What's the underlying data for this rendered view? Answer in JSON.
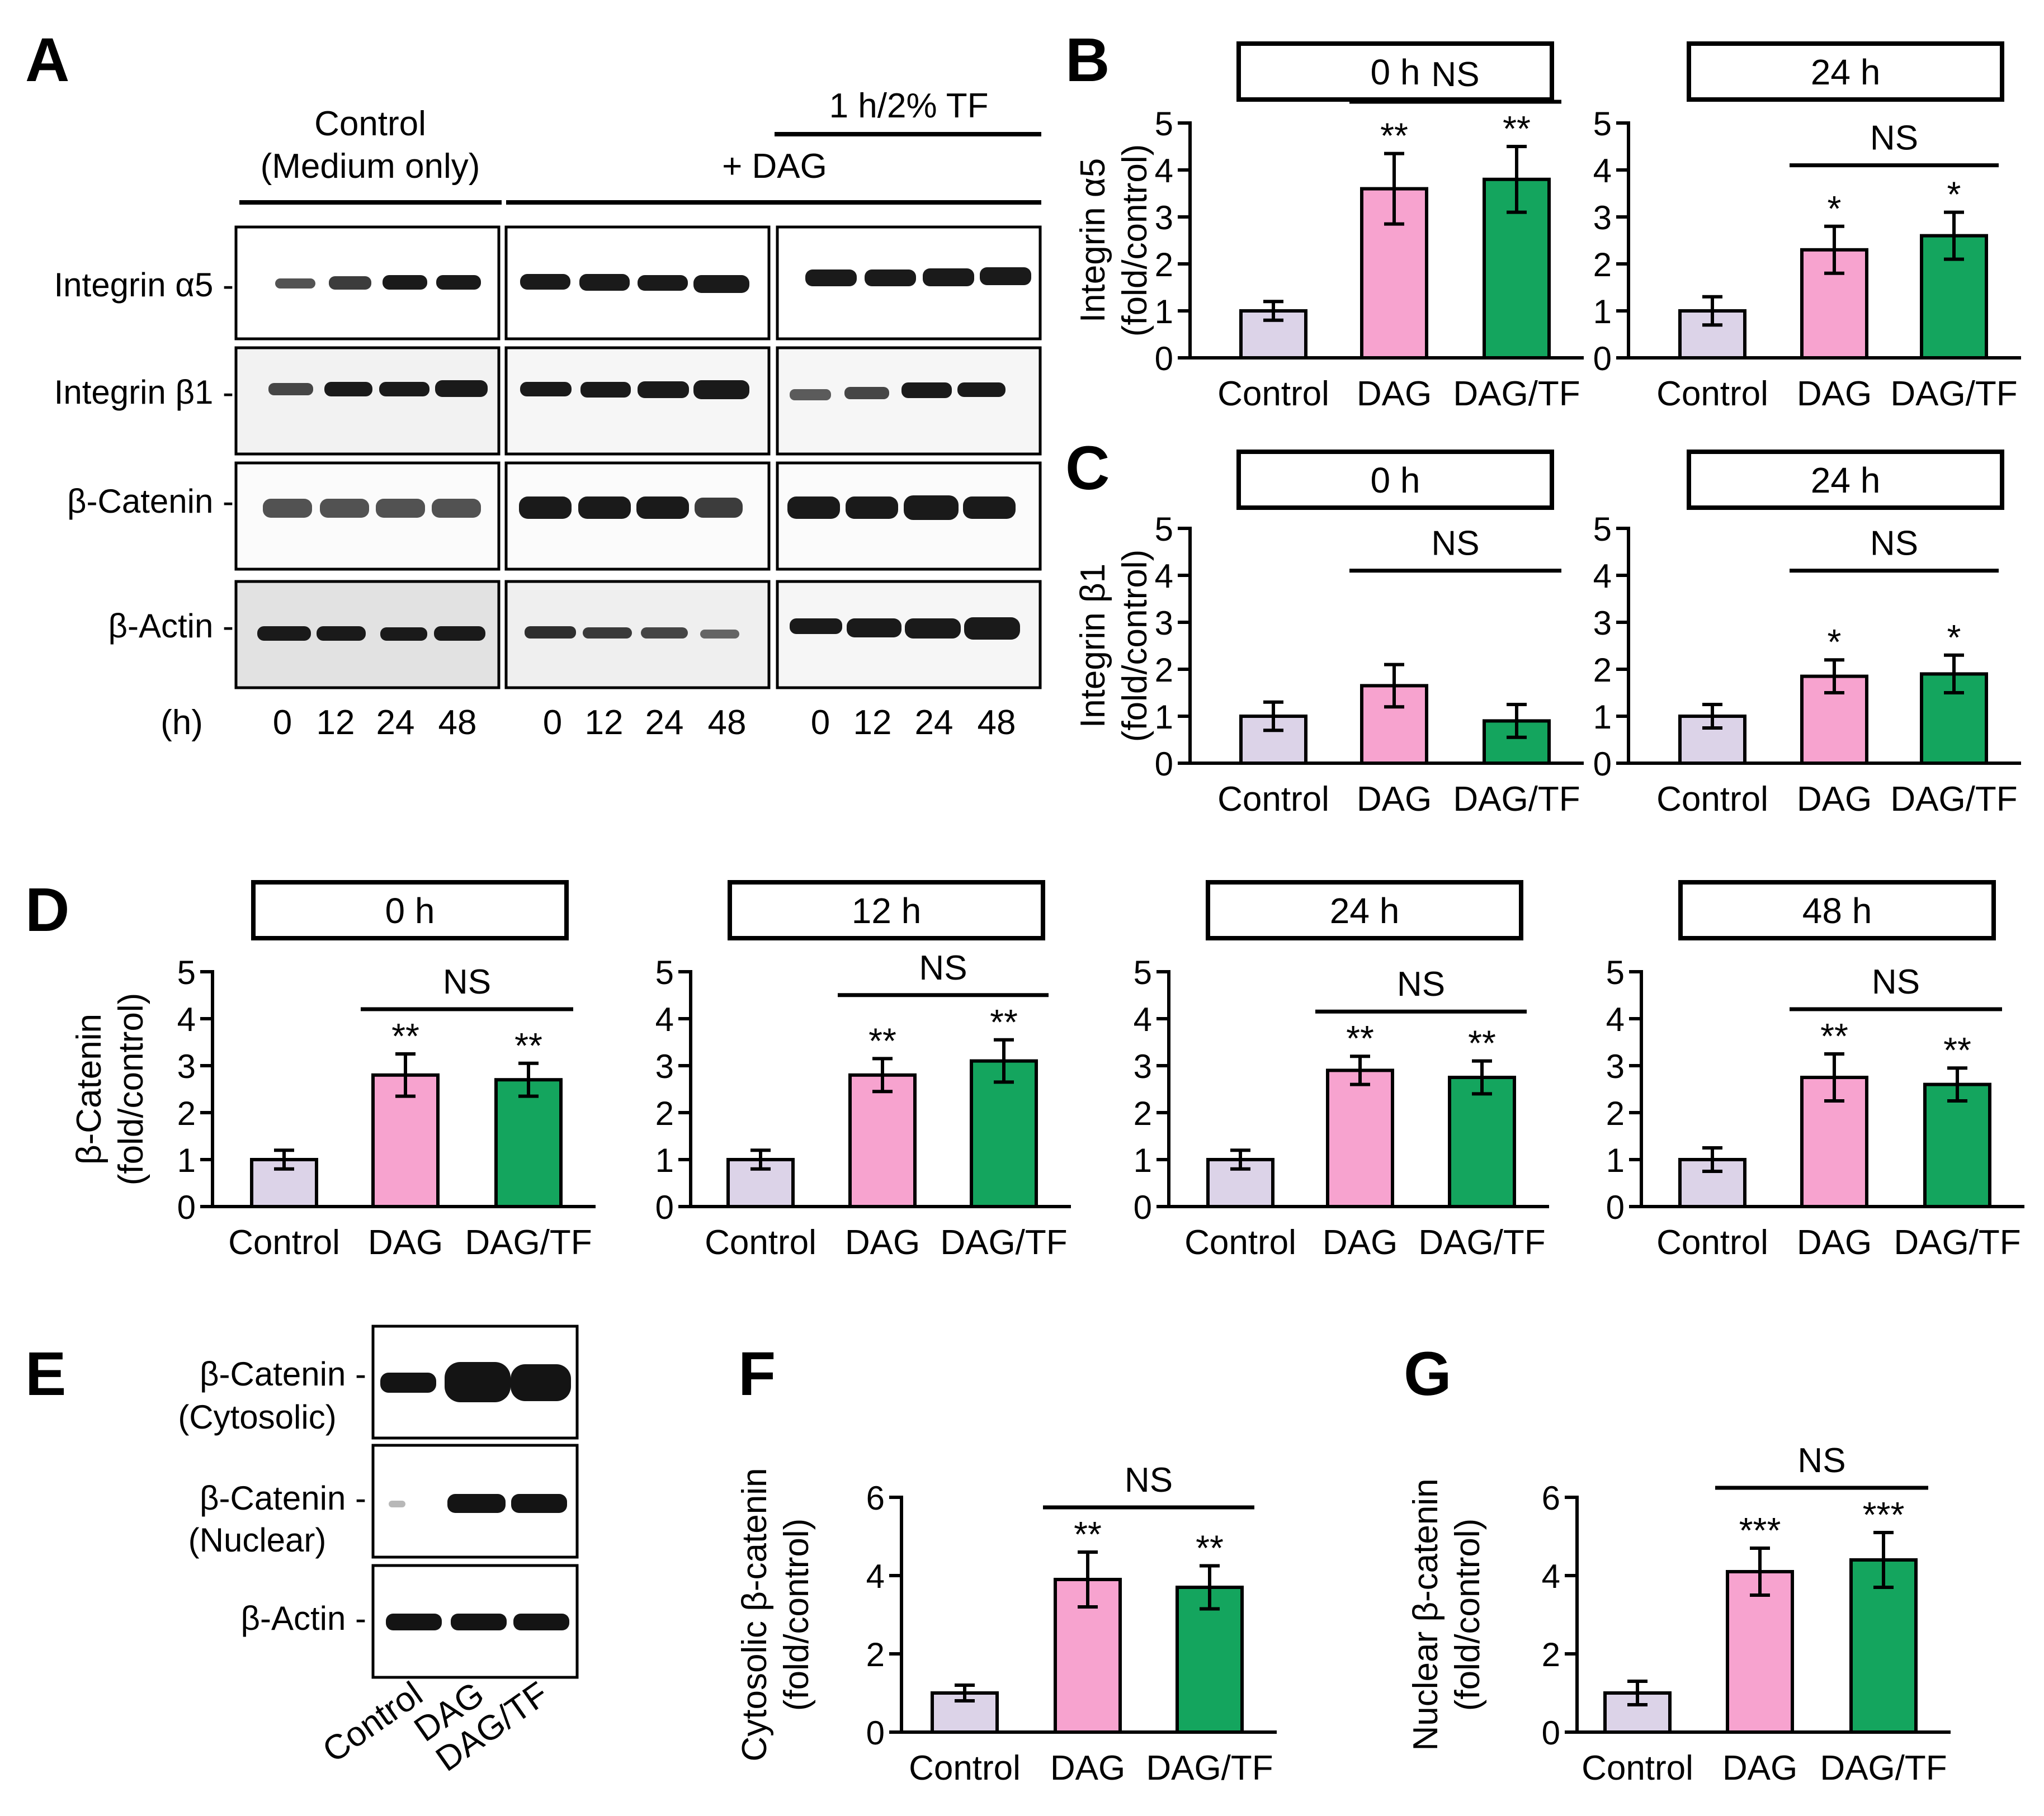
{
  "colors": {
    "control": "#DCD3E8",
    "dag": "#F7A3CF",
    "dagtf": "#14A55E",
    "stroke": "#000000"
  },
  "panel_a": {
    "letter": "A",
    "control_label_line1": "Control",
    "control_label_line2": "(Medium only)",
    "dag_label": "+ DAG",
    "tf_label": "1 h/2% TF",
    "row_labels": [
      "Integrin α5 -",
      "Integrin β1 -",
      "β-Catenin -",
      "β-Actin -"
    ],
    "time_unit": "(h)",
    "times": [
      "0",
      "12",
      "24",
      "48"
    ]
  },
  "panel_e": {
    "letter": "E",
    "rows": [
      {
        "line1": "β-Catenin -",
        "line2": "(Cytosolic)"
      },
      {
        "line1": "β-Catenin -",
        "line2": "(Nuclear)"
      },
      {
        "line1": "β-Actin -",
        "line2": ""
      }
    ],
    "lanes": [
      "Control",
      "DAG",
      "DAG/TF"
    ]
  },
  "chart_data": [
    {
      "id": "B0",
      "panel": "B",
      "type": "bar",
      "box_title": "0 h",
      "ylabel_line1": "Integrin α5",
      "ylabel_line2": "(fold/control)",
      "categories": [
        "Control",
        "DAG",
        "DAG/TF"
      ],
      "values": [
        1.0,
        3.6,
        3.8
      ],
      "errors": [
        0.2,
        0.75,
        0.7
      ],
      "stars": [
        "",
        "**",
        "**"
      ],
      "ylim": [
        0,
        5
      ],
      "yticks": [
        0,
        1,
        2,
        3,
        4,
        5
      ],
      "ns": "NS"
    },
    {
      "id": "B24",
      "panel": "",
      "type": "bar",
      "box_title": "24 h",
      "ylabel_line1": "",
      "ylabel_line2": "",
      "categories": [
        "Control",
        "DAG",
        "DAG/TF"
      ],
      "values": [
        1.0,
        2.3,
        2.6
      ],
      "errors": [
        0.3,
        0.5,
        0.5
      ],
      "stars": [
        "",
        "*",
        "*"
      ],
      "ylim": [
        0,
        5
      ],
      "yticks": [
        0,
        1,
        2,
        3,
        4,
        5
      ],
      "ns": "NS"
    },
    {
      "id": "C0",
      "panel": "C",
      "type": "bar",
      "box_title": "0 h",
      "ylabel_line1": "Integrin β1",
      "ylabel_line2": "(fold/control)",
      "categories": [
        "Control",
        "DAG",
        "DAG/TF"
      ],
      "values": [
        1.0,
        1.65,
        0.9
      ],
      "errors": [
        0.3,
        0.45,
        0.35
      ],
      "stars": [
        "",
        "",
        ""
      ],
      "ylim": [
        0,
        5
      ],
      "yticks": [
        0,
        1,
        2,
        3,
        4,
        5
      ],
      "ns": "NS"
    },
    {
      "id": "C24",
      "panel": "",
      "type": "bar",
      "box_title": "24 h",
      "ylabel_line1": "",
      "ylabel_line2": "",
      "categories": [
        "Control",
        "DAG",
        "DAG/TF"
      ],
      "values": [
        1.0,
        1.85,
        1.9
      ],
      "errors": [
        0.25,
        0.35,
        0.4
      ],
      "stars": [
        "",
        "*",
        "*"
      ],
      "ylim": [
        0,
        5
      ],
      "yticks": [
        0,
        1,
        2,
        3,
        4,
        5
      ],
      "ns": "NS"
    },
    {
      "id": "D0",
      "panel": "D",
      "type": "bar",
      "box_title": "0 h",
      "ylabel_line1": "β-Catenin",
      "ylabel_line2": "(fold/control)",
      "categories": [
        "Control",
        "DAG",
        "DAG/TF"
      ],
      "values": [
        1.0,
        2.8,
        2.7
      ],
      "errors": [
        0.2,
        0.45,
        0.35
      ],
      "stars": [
        "",
        "**",
        "**"
      ],
      "ylim": [
        0,
        5
      ],
      "yticks": [
        0,
        1,
        2,
        3,
        4,
        5
      ],
      "ns": "NS"
    },
    {
      "id": "D12",
      "panel": "",
      "type": "bar",
      "box_title": "12 h",
      "ylabel_line1": "",
      "ylabel_line2": "",
      "categories": [
        "Control",
        "DAG",
        "DAG/TF"
      ],
      "values": [
        1.0,
        2.8,
        3.1
      ],
      "errors": [
        0.2,
        0.35,
        0.45
      ],
      "stars": [
        "",
        "**",
        "**"
      ],
      "ylim": [
        0,
        5
      ],
      "yticks": [
        0,
        1,
        2,
        3,
        4,
        5
      ],
      "ns": "NS"
    },
    {
      "id": "D24",
      "panel": "",
      "type": "bar",
      "box_title": "24 h",
      "ylabel_line1": "",
      "ylabel_line2": "",
      "categories": [
        "Control",
        "DAG",
        "DAG/TF"
      ],
      "values": [
        1.0,
        2.9,
        2.75
      ],
      "errors": [
        0.2,
        0.3,
        0.35
      ],
      "stars": [
        "",
        "**",
        "**"
      ],
      "ylim": [
        0,
        5
      ],
      "yticks": [
        0,
        1,
        2,
        3,
        4,
        5
      ],
      "ns": "NS"
    },
    {
      "id": "D48",
      "panel": "",
      "type": "bar",
      "box_title": "48 h",
      "ylabel_line1": "",
      "ylabel_line2": "",
      "categories": [
        "Control",
        "DAG",
        "DAG/TF"
      ],
      "values": [
        1.0,
        2.75,
        2.6
      ],
      "errors": [
        0.25,
        0.5,
        0.35
      ],
      "stars": [
        "",
        "**",
        "**"
      ],
      "ylim": [
        0,
        5
      ],
      "yticks": [
        0,
        1,
        2,
        3,
        4,
        5
      ],
      "ns": "NS"
    },
    {
      "id": "F",
      "panel": "F",
      "type": "bar",
      "box_title": "",
      "ylabel_line1": "Cytosolic β-catenin",
      "ylabel_line2": "(fold/control)",
      "categories": [
        "Control",
        "DAG",
        "DAG/TF"
      ],
      "values": [
        1.0,
        3.9,
        3.7
      ],
      "errors": [
        0.2,
        0.7,
        0.55
      ],
      "stars": [
        "",
        "**",
        "**"
      ],
      "ylim": [
        0,
        6
      ],
      "yticks": [
        0,
        2,
        4,
        6
      ],
      "ns": "NS"
    },
    {
      "id": "G",
      "panel": "G",
      "type": "bar",
      "box_title": "",
      "ylabel_line1": "Nuclear β-catenin",
      "ylabel_line2": "(fold/control)",
      "categories": [
        "Control",
        "DAG",
        "DAG/TF"
      ],
      "values": [
        1.0,
        4.1,
        4.4
      ],
      "errors": [
        0.3,
        0.6,
        0.7
      ],
      "stars": [
        "",
        "***",
        "***"
      ],
      "ylim": [
        0,
        6
      ],
      "yticks": [
        0,
        2,
        4,
        6
      ],
      "ns": "NS"
    }
  ]
}
